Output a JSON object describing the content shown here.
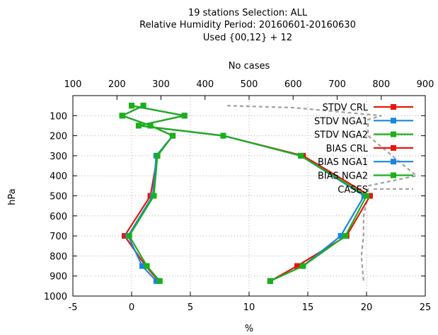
{
  "chart_data": {
    "type": "line",
    "title": [
      "19 stations Selection: ALL",
      "Relative Humidity  Period: 20160601-20160630",
      "Used {00,12} + 12"
    ],
    "xlabel": "%",
    "ylabel": "hPa",
    "x2label": "No cases",
    "xlim": [
      -5,
      25
    ],
    "x2lim": [
      100,
      900
    ],
    "ylim": [
      1000,
      0
    ],
    "xticks": [
      "-5",
      "0",
      "5",
      "10",
      "15",
      "20",
      "25"
    ],
    "x2ticks": [
      "100",
      "200",
      "300",
      "400",
      "500",
      "600",
      "700",
      "800",
      "900"
    ],
    "yticks": [
      "100",
      "200",
      "300",
      "400",
      "500",
      "600",
      "700",
      "800",
      "900",
      "1000"
    ],
    "grid": true,
    "legend_position": "top-right",
    "series": [
      {
        "name": "STDV CRL",
        "color": "#e8150f",
        "axis": "x",
        "x": [
          1.0,
          -0.8,
          1.6,
          3.5,
          2.2,
          1.6,
          -0.6,
          1.2,
          2.3
        ],
        "y": [
          50,
          100,
          150,
          200,
          300,
          500,
          700,
          850,
          925
        ]
      },
      {
        "name": "STDV NGA1",
        "color": "#1a86e0",
        "axis": "x",
        "x": [
          1.0,
          -0.8,
          1.6,
          3.5,
          2.1,
          1.8,
          -0.3,
          0.9,
          2.1
        ],
        "y": [
          50,
          100,
          150,
          200,
          300,
          500,
          700,
          850,
          925
        ]
      },
      {
        "name": "STDV NGA2",
        "color": "#1ab01a",
        "axis": "x",
        "x": [
          1.0,
          -0.8,
          1.6,
          3.5,
          2.2,
          1.9,
          -0.2,
          1.3,
          2.4
        ],
        "y": [
          50,
          100,
          150,
          200,
          300,
          500,
          700,
          850,
          925
        ]
      },
      {
        "name": "BIAS CRL",
        "color": "#e8150f",
        "axis": "x",
        "x": [
          0.0,
          4.5,
          0.6,
          7.8,
          14.6,
          20.3,
          18.3,
          14.1,
          11.8
        ],
        "y": [
          50,
          100,
          150,
          200,
          300,
          500,
          700,
          850,
          925
        ]
      },
      {
        "name": "BIAS NGA1",
        "color": "#1a86e0",
        "axis": "x",
        "x": [
          0.0,
          4.5,
          0.6,
          7.8,
          14.4,
          19.8,
          17.8,
          14.6,
          11.8
        ],
        "y": [
          50,
          100,
          150,
          200,
          300,
          500,
          700,
          850,
          925
        ]
      },
      {
        "name": "BIAS NGA2",
        "color": "#1ab01a",
        "axis": "x",
        "x": [
          0.0,
          4.5,
          0.6,
          7.8,
          14.4,
          20.0,
          18.2,
          14.6,
          11.8
        ],
        "y": [
          50,
          100,
          150,
          200,
          300,
          500,
          700,
          850,
          925
        ]
      },
      {
        "name": "CASES",
        "color": "#a0a0a0",
        "axis": "x2",
        "x": [
          450,
          600,
          800,
          770,
          770,
          880,
          770,
          770,
          760,
          760,
          755,
          760
        ],
        "y": [
          50,
          60,
          100,
          120,
          200,
          400,
          450,
          500,
          600,
          700,
          800,
          925
        ]
      }
    ]
  }
}
